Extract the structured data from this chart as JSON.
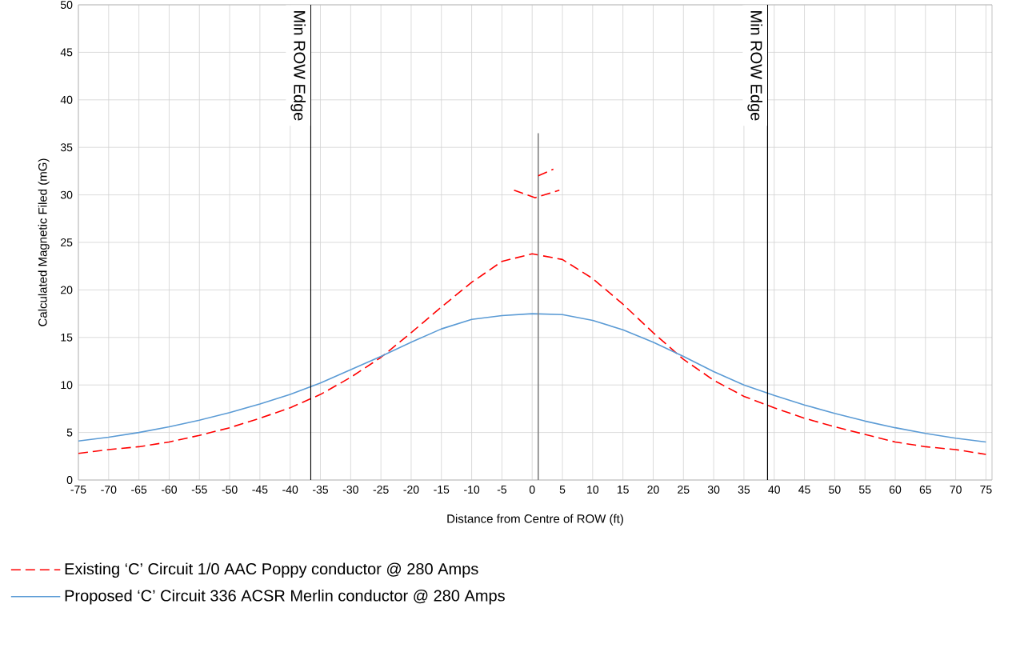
{
  "chart_data": {
    "type": "line",
    "xlabel": "Distance from Centre of ROW (ft)",
    "ylabel": "Calculated Magnetic Filed (mG)",
    "x": [
      -75,
      -70,
      -65,
      -60,
      -55,
      -50,
      -45,
      -40,
      -35,
      -30,
      -25,
      -20,
      -15,
      -10,
      -5,
      0,
      5,
      10,
      15,
      20,
      25,
      30,
      35,
      40,
      45,
      50,
      55,
      60,
      65,
      70,
      75
    ],
    "series": [
      {
        "name": "Existing ‘C’ Circuit 1/0 AAC Poppy conductor @ 280 Amps",
        "color": "#ff0000",
        "line_style": "dashed",
        "values": [
          2.8,
          3.2,
          3.5,
          4.0,
          4.7,
          5.5,
          6.5,
          7.6,
          9.0,
          10.8,
          12.9,
          15.5,
          18.2,
          20.8,
          23.0,
          23.8,
          23.2,
          21.2,
          18.5,
          15.5,
          12.7,
          10.5,
          8.8,
          7.6,
          6.5,
          5.6,
          4.8,
          4.0,
          3.5,
          3.2,
          2.7
        ]
      },
      {
        "name": "Proposed ‘C’ Circuit 336 ACSR Merlin conductor @ 280 Amps",
        "color": "#5b9bd5",
        "line_style": "solid",
        "values": [
          4.1,
          4.5,
          5.0,
          5.6,
          6.3,
          7.1,
          8.0,
          9.0,
          10.2,
          11.6,
          13.0,
          14.5,
          15.9,
          16.9,
          17.3,
          17.5,
          17.4,
          16.8,
          15.8,
          14.5,
          13.0,
          11.4,
          10.0,
          8.9,
          7.9,
          7.0,
          6.2,
          5.5,
          4.9,
          4.4,
          4.0
        ]
      },
      {
        "color": "#808080",
        "line_style": "solid",
        "x": [
          1,
          1
        ],
        "values": [
          0,
          36.5
        ]
      },
      {
        "color": "#ff0000",
        "line_style": "dashed",
        "x": [
          -3,
          0.5,
          4.5
        ],
        "values": [
          30.5,
          29.7,
          30.5
        ]
      },
      {
        "color": "#ff0000",
        "line_style": "dashed",
        "x": [
          1,
          3.5
        ],
        "values": [
          32,
          32.7
        ]
      }
    ],
    "xlim": [
      -75,
      76
    ],
    "ylim": [
      0,
      50
    ],
    "xticks": [
      -75,
      -70,
      -65,
      -60,
      -55,
      -50,
      -45,
      -40,
      -35,
      -30,
      -25,
      -20,
      -15,
      -10,
      -5,
      0,
      5,
      10,
      15,
      20,
      25,
      30,
      35,
      40,
      45,
      50,
      55,
      60,
      65,
      70,
      75
    ],
    "yticks": [
      0,
      5,
      10,
      15,
      20,
      25,
      30,
      35,
      40,
      45,
      50
    ],
    "grid": true,
    "legend": "bottom",
    "ref_lines": [
      {
        "axis": "x",
        "value": -36.6,
        "label": "Min ROW Edge",
        "color": "#000000"
      },
      {
        "axis": "x",
        "value": 38.9,
        "label": "Min ROW Edge",
        "color": "#000000"
      }
    ]
  }
}
